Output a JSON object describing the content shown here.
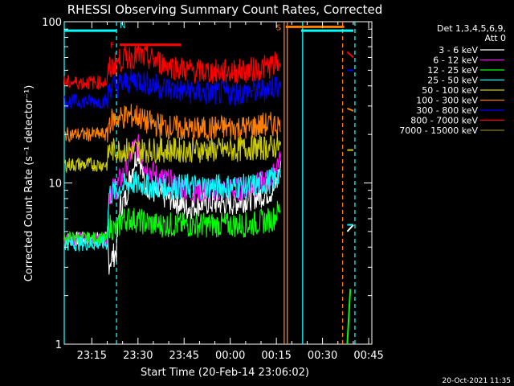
{
  "chart_data": {
    "type": "line",
    "title": "RHESSI Observing Summary Count Rates, Corrected",
    "xlabel": "Start Time (20-Feb-14 23:06:02)",
    "ylabel": "Corrected Count Rate (s⁻¹ detector⁻¹)",
    "y_scale": "log",
    "ylim": [
      1,
      100
    ],
    "x_range_minutes": [
      0,
      100
    ],
    "x_ticks": [
      {
        "label": "23:15",
        "minutes": 8.97
      },
      {
        "label": "23:30",
        "minutes": 23.97
      },
      {
        "label": "23:45",
        "minutes": 38.97
      },
      {
        "label": "00:00",
        "minutes": 53.97
      },
      {
        "label": "00:15",
        "minutes": 68.97
      },
      {
        "label": "00:30",
        "minutes": 83.97
      },
      {
        "label": "00:45",
        "minutes": 98.97
      }
    ],
    "y_tick_labels": [
      {
        "label": "1",
        "value": 1
      },
      {
        "label": "10",
        "value": 10
      },
      {
        "label": "100",
        "value": 100
      }
    ],
    "legend_header": [
      "Det 1,3,4,5,6,9,",
      "Att 0"
    ],
    "series": [
      {
        "name": "3 - 6 keV",
        "color": "#ffffff",
        "points": [
          [
            0,
            4.5
          ],
          [
            14,
            4.5
          ],
          [
            14.5,
            3.2
          ],
          [
            17,
            3.8
          ],
          [
            18,
            7
          ],
          [
            20,
            8
          ],
          [
            22,
            12
          ],
          [
            24,
            16
          ],
          [
            26,
            10
          ],
          [
            30,
            8.5
          ],
          [
            35,
            8
          ],
          [
            40,
            7
          ],
          [
            45,
            7.5
          ],
          [
            50,
            7.5
          ],
          [
            55,
            7.5
          ],
          [
            60,
            8
          ],
          [
            65,
            8.5
          ],
          [
            68,
            9
          ],
          [
            69,
            10
          ],
          [
            70.5,
            13
          ]
        ],
        "segments_after": [
          [
            92,
            5
          ],
          [
            94,
            5.5
          ]
        ]
      },
      {
        "name": "6 - 12 keV",
        "color": "#ff00ff",
        "points": [
          [
            0,
            4.5
          ],
          [
            14,
            4.5
          ],
          [
            14.5,
            8.5
          ],
          [
            17,
            9.5
          ],
          [
            19,
            11
          ],
          [
            22,
            16
          ],
          [
            24,
            17
          ],
          [
            26,
            13
          ],
          [
            30,
            11
          ],
          [
            35,
            10
          ],
          [
            40,
            9
          ],
          [
            45,
            9
          ],
          [
            50,
            9
          ],
          [
            55,
            9
          ],
          [
            60,
            9.5
          ],
          [
            65,
            10
          ],
          [
            68,
            11
          ],
          [
            69,
            13
          ],
          [
            70.5,
            15
          ]
        ]
      },
      {
        "name": "12 - 25 keV",
        "color": "#00ff00",
        "points": [
          [
            0,
            4.5
          ],
          [
            14,
            4.5
          ],
          [
            14.5,
            5.5
          ],
          [
            17,
            5
          ],
          [
            19,
            6
          ],
          [
            22,
            6
          ],
          [
            26,
            5.7
          ],
          [
            30,
            5.5
          ],
          [
            35,
            5.5
          ],
          [
            40,
            5.5
          ],
          [
            45,
            5.5
          ],
          [
            50,
            5.5
          ],
          [
            55,
            5.5
          ],
          [
            60,
            5.5
          ],
          [
            65,
            5.8
          ],
          [
            68,
            6
          ],
          [
            69,
            6.5
          ],
          [
            70.5,
            7
          ]
        ],
        "segments_after": [
          [
            92,
            1.0
          ],
          [
            93,
            2.2
          ]
        ]
      },
      {
        "name": "25 - 50 keV",
        "color": "#00ffff",
        "points": [
          [
            0,
            4.2
          ],
          [
            14,
            4.2
          ],
          [
            14.5,
            8.5
          ],
          [
            17,
            9
          ],
          [
            19,
            9.5
          ],
          [
            22,
            10
          ],
          [
            26,
            9.7
          ],
          [
            30,
            9.5
          ],
          [
            35,
            9.5
          ],
          [
            40,
            9.5
          ],
          [
            45,
            9.5
          ],
          [
            50,
            9.5
          ],
          [
            55,
            9.5
          ],
          [
            60,
            9.5
          ],
          [
            65,
            10
          ],
          [
            68,
            10.5
          ],
          [
            69,
            11
          ],
          [
            70.5,
            11
          ]
        ],
        "segments_after": [
          [
            92,
            5.5
          ],
          [
            94,
            5.5
          ]
        ]
      },
      {
        "name": "50 - 100 keV",
        "color": "#cccc00",
        "points": [
          [
            0,
            13
          ],
          [
            14,
            13
          ],
          [
            14.5,
            16
          ],
          [
            17,
            16
          ],
          [
            20,
            16
          ],
          [
            26,
            16
          ],
          [
            30,
            16
          ],
          [
            35,
            16
          ],
          [
            40,
            16
          ],
          [
            45,
            16
          ],
          [
            50,
            16
          ],
          [
            55,
            16
          ],
          [
            60,
            16.5
          ],
          [
            65,
            16.5
          ],
          [
            70.5,
            17
          ]
        ],
        "segments_after": [
          [
            92,
            16
          ],
          [
            94,
            16
          ]
        ]
      },
      {
        "name": "100 - 300 keV",
        "color": "#ff8000",
        "points": [
          [
            0,
            20
          ],
          [
            14,
            20
          ],
          [
            14.5,
            24
          ],
          [
            17,
            25
          ],
          [
            20,
            26
          ],
          [
            24,
            26
          ],
          [
            26,
            24
          ],
          [
            30,
            23
          ],
          [
            35,
            22
          ],
          [
            40,
            21.5
          ],
          [
            45,
            21.5
          ],
          [
            50,
            22
          ],
          [
            55,
            22
          ],
          [
            60,
            22
          ],
          [
            65,
            23
          ],
          [
            70.5,
            23
          ]
        ],
        "segments_after": [
          [
            92,
            29
          ],
          [
            94,
            28
          ]
        ]
      },
      {
        "name": "300 - 800 keV",
        "color": "#0000ff",
        "points": [
          [
            0,
            32
          ],
          [
            14,
            32
          ],
          [
            14.5,
            39
          ],
          [
            17,
            40
          ],
          [
            20,
            42
          ],
          [
            24,
            44
          ],
          [
            26,
            42
          ],
          [
            30,
            40
          ],
          [
            35,
            38
          ],
          [
            40,
            37
          ],
          [
            45,
            36
          ],
          [
            50,
            36
          ],
          [
            55,
            36
          ],
          [
            60,
            36.5
          ],
          [
            65,
            38
          ],
          [
            68,
            40
          ],
          [
            70.5,
            42
          ]
        ],
        "segments_after": [
          [
            92,
            50
          ],
          [
            94,
            50
          ]
        ]
      },
      {
        "name": "800 - 7000 keV",
        "color": "#ff0000",
        "points": [
          [
            0,
            42
          ],
          [
            14,
            42
          ],
          [
            14.5,
            50
          ],
          [
            17,
            56
          ],
          [
            20,
            60
          ],
          [
            24,
            62
          ],
          [
            26,
            60
          ],
          [
            30,
            57
          ],
          [
            35,
            53
          ],
          [
            40,
            50
          ],
          [
            45,
            49
          ],
          [
            50,
            49
          ],
          [
            55,
            49
          ],
          [
            60,
            50
          ],
          [
            65,
            52
          ],
          [
            68,
            54
          ],
          [
            70.5,
            55
          ]
        ],
        "segments_after": [
          [
            92,
            65
          ],
          [
            94,
            60
          ]
        ]
      },
      {
        "name": "7000 - 15000 keV",
        "color": "#808000",
        "points": [],
        "segments_after": []
      }
    ],
    "annotations": [
      {
        "label": "N",
        "color": "#00ffff",
        "bar": [
          0,
          17
        ],
        "bar_y": 88
      },
      {
        "label": "F",
        "color": "#ff0000",
        "bar": [
          18,
          38
        ],
        "bar_y": 72
      },
      {
        "label": "S",
        "color": "#ff8000",
        "bar": [
          72,
          91
        ],
        "bar_y": 93
      },
      {
        "label": "",
        "color": "#00ffff",
        "bar": [
          77,
          94
        ],
        "bar_y": 88
      }
    ],
    "vlines": [
      {
        "minutes": 0,
        "color": "#00ffff",
        "style": "solid"
      },
      {
        "minutes": 17,
        "color": "#00ffff",
        "style": "dashed"
      },
      {
        "minutes": 71.5,
        "color": "#ff8000",
        "style": "solid"
      },
      {
        "minutes": 72.5,
        "color": "#ff8000",
        "style": "solid"
      },
      {
        "minutes": 77.5,
        "color": "#00ffff",
        "style": "solid"
      },
      {
        "minutes": 90.5,
        "color": "#ff8000",
        "style": "dashed"
      },
      {
        "minutes": 94.5,
        "color": "#00ffff",
        "style": "dashed"
      }
    ],
    "footer_timestamp": "20-Oct-2021 11:35",
    "grid": false,
    "legend_placement": "right"
  }
}
